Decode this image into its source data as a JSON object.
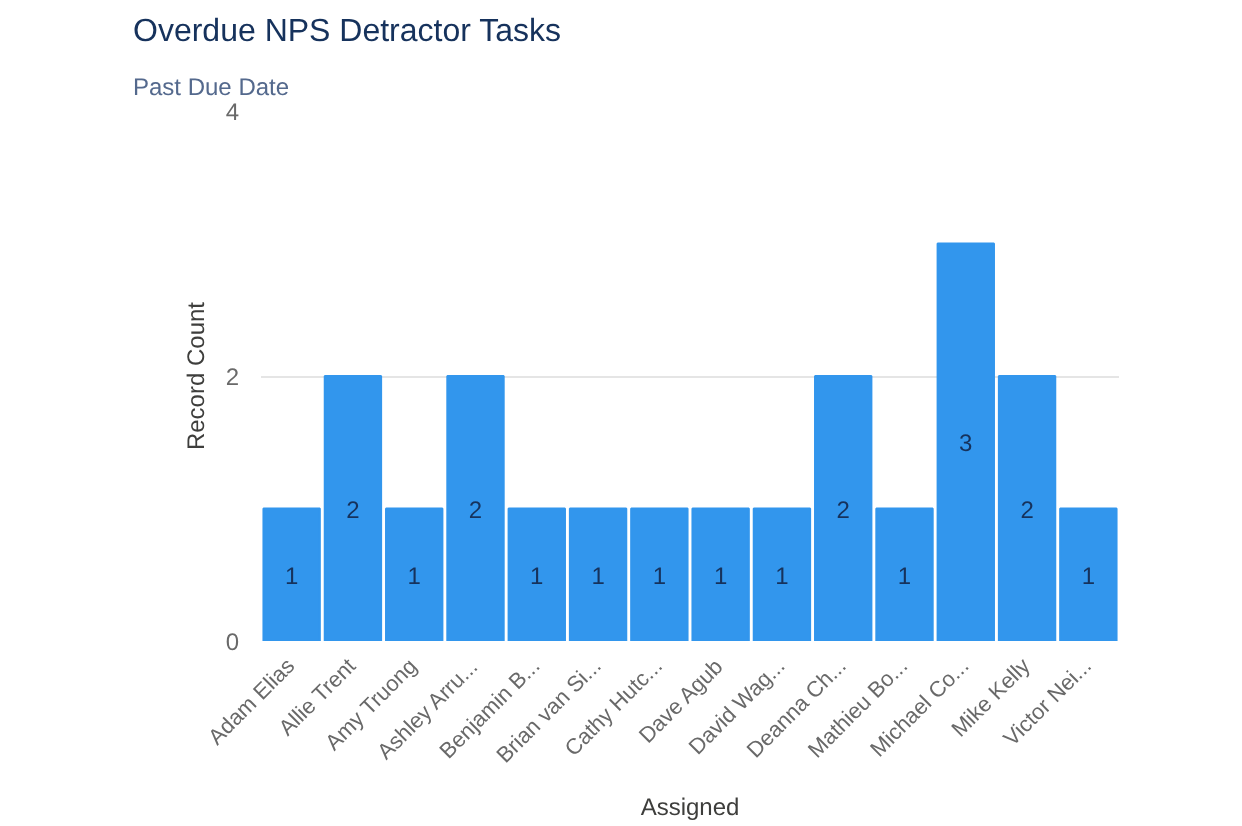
{
  "chart_data": {
    "type": "bar",
    "title": "Overdue NPS Detractor Tasks",
    "subtitle": "Past Due Date",
    "xlabel": "Assigned",
    "ylabel": "Record Count",
    "categories": [
      "Adam Elias",
      "Allie Trent",
      "Amy Truong",
      "Ashley Arru...",
      "Benjamin B...",
      "Brian van Si...",
      "Cathy Hutc...",
      "Dave Agub",
      "David Wag...",
      "Deanna Ch...",
      "Mathieu Bo...",
      "Michael Co...",
      "Mike Kelly",
      "Victor Nei..."
    ],
    "values": [
      1,
      2,
      1,
      2,
      1,
      1,
      1,
      1,
      1,
      2,
      1,
      3,
      2,
      1
    ],
    "color": "#3296ed",
    "ylim": [
      0,
      4
    ],
    "yticks": [
      0,
      2,
      4
    ],
    "grid": "y",
    "data_labels": true
  }
}
